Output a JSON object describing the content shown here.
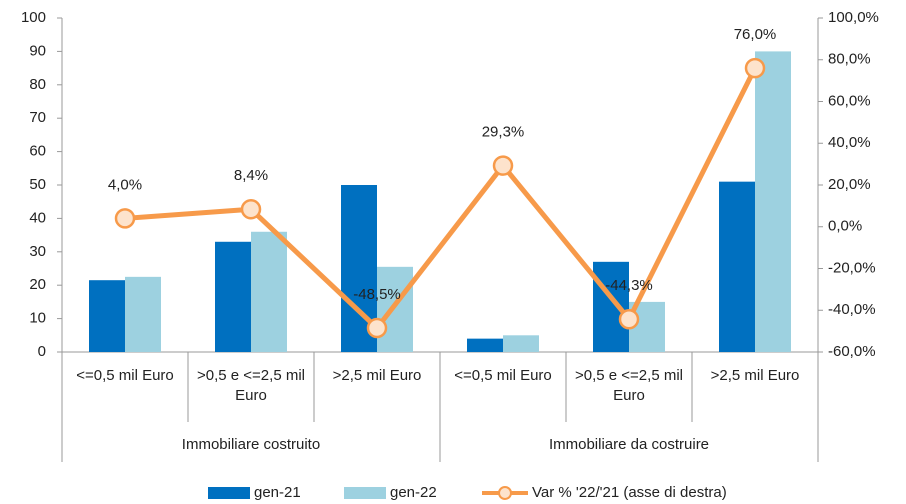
{
  "chart_data": {
    "type": "bar_line",
    "groups": [
      "Immobiliare costruito",
      "Immobiliare da costruire"
    ],
    "categories": [
      "<=0,5 mil Euro",
      ">0,5 e <=2,5 mil Euro",
      ">2,5 mil Euro",
      "<=0,5 mil Euro",
      ">0,5 e <=2,5 mil Euro",
      ">2,5 mil Euro"
    ],
    "series": [
      {
        "name": "gen-21",
        "color": "#0070c0",
        "values": [
          21.5,
          33,
          50,
          4,
          27,
          51
        ]
      },
      {
        "name": "gen-22",
        "color": "#9dd1e0",
        "values": [
          22.5,
          36,
          25.5,
          5,
          15,
          90
        ]
      },
      {
        "name": "Var % '22/'21 (asse di destra)",
        "color": "#f79a4a",
        "axis": "y2",
        "type": "line",
        "values": [
          4.0,
          8.4,
          -48.5,
          29.3,
          -44.3,
          76.0
        ],
        "value_labels": [
          "4,0%",
          "8,4%",
          "-48,5%",
          "29,3%",
          "-44,3%",
          "76,0%"
        ]
      }
    ],
    "ylim": [
      0,
      100
    ],
    "yticks": [
      0,
      10,
      20,
      30,
      40,
      50,
      60,
      70,
      80,
      90,
      100
    ],
    "y2lim": [
      -60,
      100
    ],
    "y2ticks": [
      {
        "value": -60,
        "label": "-60,0%"
      },
      {
        "value": -40,
        "label": "-40,0%"
      },
      {
        "value": -20,
        "label": "-20,0%"
      },
      {
        "value": 0,
        "label": "0,0%"
      },
      {
        "value": 20,
        "label": "20,0%"
      },
      {
        "value": 40,
        "label": "40,0%"
      },
      {
        "value": 60,
        "label": "60,0%"
      },
      {
        "value": 80,
        "label": "80,0%"
      },
      {
        "value": 100,
        "label": "100,0%"
      }
    ],
    "legend": "bottom"
  }
}
